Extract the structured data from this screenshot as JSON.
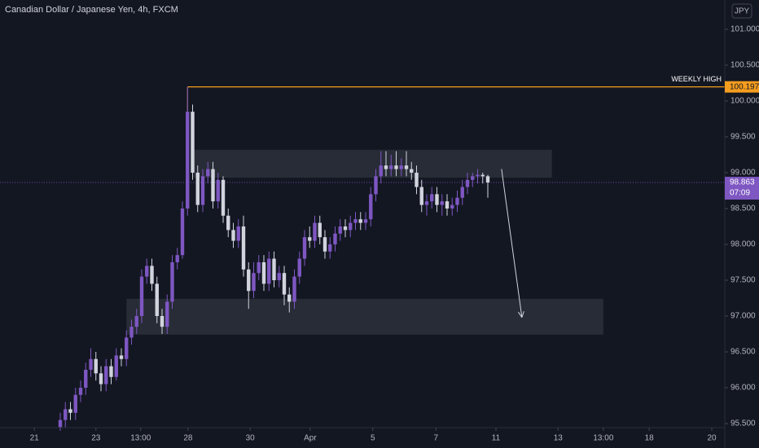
{
  "chart_data": {
    "type": "candlestick",
    "title": "Canadian Dollar / Japanese Yen, 4h, FXCM",
    "currency": "JPY",
    "up_color": "#7e57c2",
    "down_color": "#d1d4dc",
    "open": [
      95.45,
      95.55,
      95.7,
      95.65,
      95.9,
      96.0,
      96.25,
      96.4,
      96.2,
      96.05,
      96.3,
      96.15,
      96.45,
      96.4,
      96.7,
      96.85,
      97.0,
      97.55,
      97.7,
      97.45,
      97.0,
      96.85,
      97.2,
      97.75,
      97.85,
      98.5,
      99.85,
      99.0,
      98.55,
      98.95,
      99.05,
      98.6,
      98.9,
      98.4,
      98.2,
      98.05,
      98.25,
      97.65,
      97.35,
      97.6,
      97.75,
      97.45,
      97.8,
      97.5,
      97.6,
      97.3,
      97.2,
      97.55,
      97.8,
      98.1,
      98.05,
      98.3,
      98.1,
      97.9,
      98.0,
      98.15,
      98.25,
      98.2,
      98.3,
      98.35,
      98.3,
      98.35,
      98.7,
      98.95,
      99.1,
      99.05,
      99.1,
      99.05,
      99.1,
      99.05,
      99.0,
      98.8,
      98.55,
      98.6,
      98.7,
      98.55,
      98.6,
      98.5,
      98.55,
      98.65,
      98.8,
      98.9,
      98.95,
      98.97,
      98.95
    ],
    "high": [
      95.65,
      95.8,
      95.8,
      96.0,
      96.1,
      96.35,
      96.55,
      96.5,
      96.3,
      96.4,
      96.4,
      96.55,
      96.55,
      96.8,
      96.95,
      97.1,
      97.65,
      97.8,
      97.8,
      97.55,
      97.1,
      97.3,
      97.85,
      97.95,
      98.6,
      100.197,
      99.95,
      99.1,
      99.05,
      99.15,
      99.15,
      99.0,
      98.95,
      98.5,
      98.3,
      98.35,
      98.4,
      97.75,
      97.75,
      97.85,
      97.85,
      97.9,
      97.9,
      97.7,
      97.7,
      97.4,
      97.65,
      97.9,
      98.2,
      98.25,
      98.4,
      98.4,
      98.2,
      98.1,
      98.25,
      98.35,
      98.35,
      98.4,
      98.45,
      98.45,
      98.45,
      98.8,
      99.05,
      99.3,
      99.3,
      99.25,
      99.3,
      99.2,
      99.3,
      99.15,
      99.1,
      98.9,
      98.7,
      98.8,
      98.8,
      98.7,
      98.7,
      98.65,
      98.75,
      98.9,
      99.0,
      99.0,
      99.05,
      99.0,
      98.97
    ],
    "low": [
      95.4,
      95.45,
      95.55,
      95.55,
      95.8,
      95.9,
      96.15,
      96.1,
      95.95,
      95.95,
      96.05,
      96.1,
      96.3,
      96.3,
      96.6,
      96.75,
      96.9,
      97.45,
      97.35,
      96.9,
      96.75,
      96.75,
      97.1,
      97.65,
      97.8,
      98.4,
      98.9,
      98.45,
      98.45,
      98.85,
      98.5,
      98.5,
      98.3,
      98.1,
      97.95,
      97.95,
      97.55,
      97.1,
      97.25,
      97.5,
      97.35,
      97.35,
      97.4,
      97.4,
      97.15,
      97.05,
      97.1,
      97.45,
      97.7,
      97.95,
      97.95,
      98.0,
      97.8,
      97.8,
      97.9,
      98.05,
      98.1,
      98.1,
      98.2,
      98.2,
      98.2,
      98.25,
      98.6,
      98.85,
      98.95,
      98.95,
      98.95,
      98.95,
      98.95,
      98.9,
      98.7,
      98.45,
      98.4,
      98.5,
      98.45,
      98.4,
      98.4,
      98.4,
      98.45,
      98.55,
      98.7,
      98.8,
      98.85,
      98.85,
      98.65
    ],
    "close": [
      95.55,
      95.7,
      95.65,
      95.9,
      96.0,
      96.25,
      96.4,
      96.2,
      96.05,
      96.3,
      96.15,
      96.45,
      96.4,
      96.7,
      96.85,
      97.0,
      97.55,
      97.7,
      97.45,
      97.0,
      96.85,
      97.2,
      97.75,
      97.85,
      98.5,
      99.85,
      99.0,
      98.55,
      98.95,
      99.05,
      98.6,
      98.9,
      98.4,
      98.2,
      98.05,
      98.25,
      97.65,
      97.35,
      97.6,
      97.75,
      97.45,
      97.8,
      97.5,
      97.6,
      97.3,
      97.2,
      97.55,
      97.8,
      98.1,
      98.05,
      98.3,
      98.1,
      97.9,
      98.0,
      98.15,
      98.25,
      98.2,
      98.3,
      98.35,
      98.3,
      98.35,
      98.7,
      98.95,
      99.1,
      99.05,
      99.1,
      99.05,
      99.1,
      99.05,
      99.0,
      98.8,
      98.55,
      98.6,
      98.7,
      98.55,
      98.6,
      98.5,
      98.55,
      98.65,
      98.8,
      98.9,
      98.95,
      98.97,
      98.95,
      98.863
    ],
    "xlim": [
      -11.84,
      130.56
    ],
    "xticks": [
      {
        "value": -5.1,
        "label": "21"
      },
      {
        "value": 7,
        "label": "23"
      },
      {
        "value": 15.8,
        "label": "13:00"
      },
      {
        "value": 25.1,
        "label": "28"
      },
      {
        "value": 37.3,
        "label": "30"
      },
      {
        "value": 49.1,
        "label": "Apr"
      },
      {
        "value": 61.4,
        "label": "5"
      },
      {
        "value": 73.8,
        "label": "7"
      },
      {
        "value": 85.6,
        "label": "11"
      },
      {
        "value": 97.8,
        "label": "13"
      },
      {
        "value": 106.7,
        "label": "13:00"
      },
      {
        "value": 115.7,
        "label": "18"
      },
      {
        "value": 128,
        "label": "20"
      }
    ],
    "ylim": [
      95.443,
      101.409
    ],
    "yticks": [
      {
        "value": 95.5,
        "label": "95.500"
      },
      {
        "value": 96,
        "label": "96.000"
      },
      {
        "value": 96.5,
        "label": "96.500"
      },
      {
        "value": 97,
        "label": "97.000"
      },
      {
        "value": 97.5,
        "label": "97.500"
      },
      {
        "value": 98,
        "label": "98.000"
      },
      {
        "value": 98.5,
        "label": "98.500"
      },
      {
        "value": 99,
        "label": "99.000"
      },
      {
        "value": 99.5,
        "label": "99.500"
      },
      {
        "value": 100,
        "label": "100.000"
      },
      {
        "value": 100.5,
        "label": "100.500"
      },
      {
        "value": 101,
        "label": "101.000"
      }
    ],
    "grid": false,
    "zones": [
      {
        "start": 26.2,
        "end": 96.6,
        "low": 98.93,
        "high": 99.32
      },
      {
        "start": 13,
        "end": 106.7,
        "low": 96.74,
        "high": 97.24
      }
    ],
    "arrow": {
      "x": [
        86.7,
        90.7
      ],
      "y": [
        99.05,
        96.98
      ]
    },
    "weekly_high": {
      "label": "WEEKLY HIGH",
      "start": 25,
      "value": 100.197,
      "color": "#f59d1e"
    },
    "last_price": {
      "value": 98.863,
      "countdown": "07:09",
      "color": "#7e57c2"
    }
  }
}
